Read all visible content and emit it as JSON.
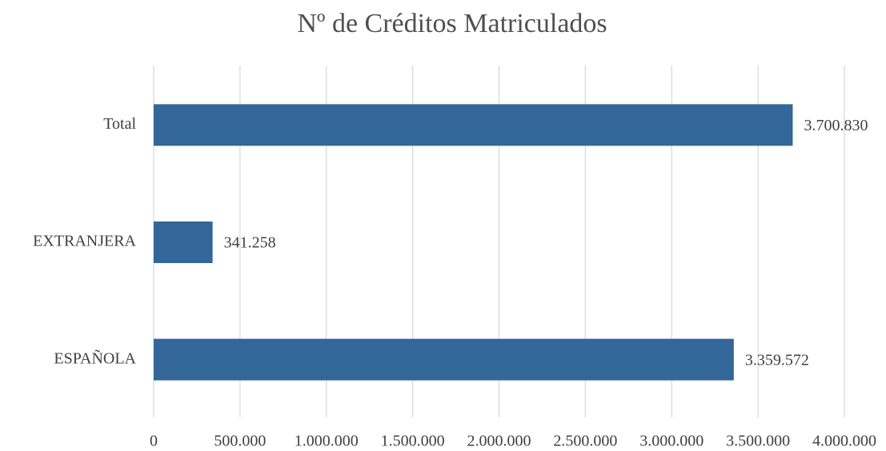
{
  "chart_data": {
    "type": "bar",
    "orientation": "horizontal",
    "title": "Nº de Créditos Matriculados",
    "categories": [
      "Total",
      "EXTRANJERA",
      "ESPAÑOLA"
    ],
    "values": [
      3700830,
      341258,
      3359572
    ],
    "value_labels": [
      "3.700.830",
      "341.258",
      "3.359.572"
    ],
    "color": "#336699",
    "xlim": [
      0,
      4000000
    ],
    "xticks": [
      0,
      {
        "value": 500000,
        "label": "500.000"
      },
      {
        "value": 1000000,
        "label": "1.000.000"
      },
      {
        "value": 1500000,
        "label": "1.500.000"
      },
      {
        "value": 2000000,
        "label": "2.000.000"
      },
      {
        "value": 2500000,
        "label": "2.500.000"
      },
      {
        "value": 3000000,
        "label": "3.000.000"
      },
      {
        "value": 3500000,
        "label": "3.500.000"
      },
      {
        "value": 4000000,
        "label": "4.000.000"
      }
    ],
    "grid": true
  }
}
